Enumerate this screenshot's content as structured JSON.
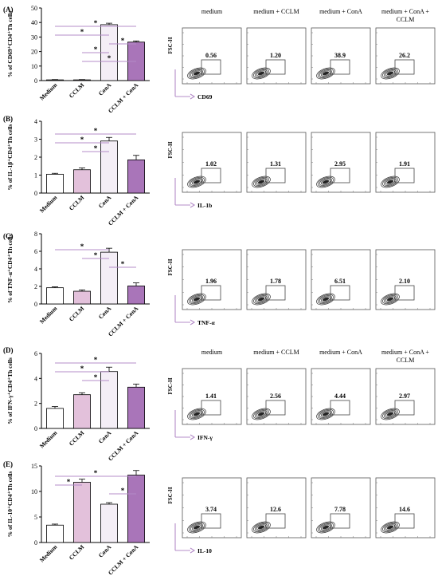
{
  "figure": {
    "flow_condition_headers_top": [
      "medium",
      "medium + CCLM",
      "medium + ConA",
      "medium + ConA + CCLM"
    ],
    "flow_condition_headers_d": [
      "medium",
      "medium + CCLM",
      "medium + ConA",
      "medium + ConA + CCLM"
    ]
  },
  "colors": {
    "medium": "#ffffff",
    "cclm": "#e3c1db",
    "cona": "#f4eef6",
    "cclm_cona": "#a975b9",
    "significance_line": "#b48cc8",
    "gate_axis": "#b48cc8"
  },
  "chart_data": [
    {
      "type": "bar",
      "panel": "(A)",
      "ylabel": "% of CD69⁺CD4⁺Th cells",
      "categories": [
        "Medium",
        "CCLM",
        "ConA",
        "CCLM + ConA"
      ],
      "values": [
        0.5,
        0.5,
        38.5,
        26.5
      ],
      "errors": [
        0.2,
        0.2,
        1.0,
        0.8
      ],
      "ylim": [
        0,
        50
      ],
      "yticks": [
        0,
        10,
        20,
        30,
        40,
        50
      ],
      "significance": [
        [
          0,
          3
        ],
        [
          0,
          2
        ],
        [
          2,
          3
        ],
        [
          1,
          2
        ],
        [
          1,
          3
        ]
      ],
      "flow": {
        "x_marker": "CD69",
        "y_marker": "FSC-H",
        "gate_values": [
          "0.56",
          "1.20",
          "38.9",
          "26.2"
        ]
      }
    },
    {
      "type": "bar",
      "panel": "(B)",
      "ylabel": "% of IL-1β⁺CD4⁺Th cells",
      "categories": [
        "Medium",
        "CCLM",
        "ConA",
        "CCLM + ConA"
      ],
      "values": [
        1.05,
        1.3,
        2.9,
        1.85
      ],
      "errors": [
        0.05,
        0.1,
        0.2,
        0.25
      ],
      "ylim": [
        0,
        4
      ],
      "yticks": [
        0,
        1,
        2,
        3,
        4
      ],
      "significance": [
        [
          0,
          3
        ],
        [
          0,
          2
        ],
        [
          1,
          2
        ]
      ],
      "flow": {
        "x_marker": "IL-1b",
        "y_marker": "FSC-H",
        "gate_values": [
          "1.02",
          "1.31",
          "2.95",
          "1.91"
        ]
      }
    },
    {
      "type": "bar",
      "panel": "(C)",
      "ylabel": "% of TNF-α⁺CD4⁺Th cells",
      "categories": [
        "Medium",
        "CCLM",
        "ConA",
        "CCLM + ConA"
      ],
      "values": [
        1.85,
        1.45,
        5.9,
        2.05
      ],
      "errors": [
        0.1,
        0.15,
        0.45,
        0.35
      ],
      "ylim": [
        0,
        8
      ],
      "yticks": [
        0,
        2,
        4,
        6,
        8
      ],
      "significance": [
        [
          0,
          2
        ],
        [
          1,
          2
        ],
        [
          2,
          3
        ]
      ],
      "flow": {
        "x_marker": "TNF-α",
        "y_marker": "FSC-H",
        "gate_values": [
          "1.96",
          "1.78",
          "6.51",
          "2.10"
        ]
      }
    },
    {
      "type": "bar",
      "panel": "(D)",
      "ylabel": "% of IFN-γ⁺CD4⁺Th cells",
      "categories": [
        "Medium",
        "CCLM",
        "ConA",
        "CCLM + ConA"
      ],
      "values": [
        1.6,
        2.7,
        4.55,
        3.3
      ],
      "errors": [
        0.15,
        0.15,
        0.35,
        0.25
      ],
      "ylim": [
        0,
        6
      ],
      "yticks": [
        0,
        2,
        4,
        6
      ],
      "significance": [
        [
          0,
          3
        ],
        [
          0,
          2
        ],
        [
          1,
          2
        ]
      ],
      "flow": {
        "x_marker": "IFN-γ",
        "y_marker": "FSC-H",
        "gate_values": [
          "1.41",
          "2.56",
          "4.44",
          "2.97"
        ]
      }
    },
    {
      "type": "bar",
      "panel": "(E)",
      "ylabel": "% of IL-10⁺CD4⁺Th cells",
      "categories": [
        "Medium",
        "CCLM",
        "ConA",
        "CCLM + ConA"
      ],
      "values": [
        3.4,
        11.8,
        7.5,
        13.2
      ],
      "errors": [
        0.2,
        0.6,
        0.3,
        0.9
      ],
      "ylim": [
        0,
        15
      ],
      "yticks": [
        0,
        5,
        10,
        15
      ],
      "significance": [
        [
          0,
          3
        ],
        [
          0,
          1
        ],
        [
          2,
          3
        ]
      ],
      "flow": {
        "x_marker": "IL-10",
        "y_marker": "FSC-H",
        "gate_values": [
          "3.74",
          "12.6",
          "7.78",
          "14.6"
        ]
      }
    }
  ]
}
